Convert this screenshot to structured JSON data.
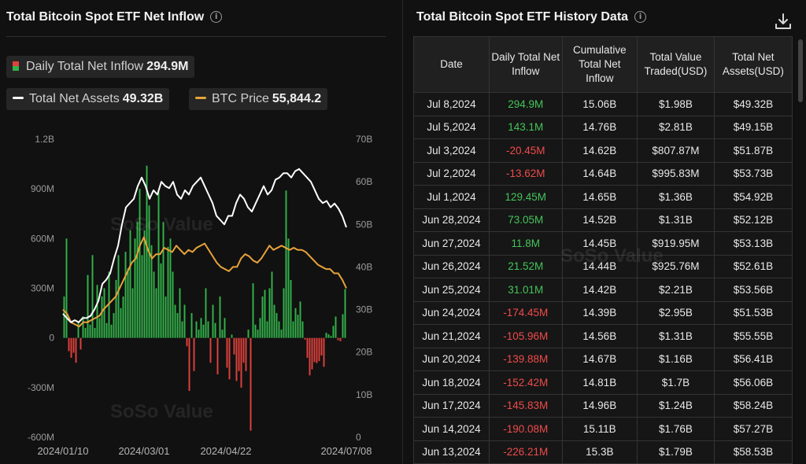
{
  "left": {
    "title": "Total Bitcoin Spot ETF Net Inflow",
    "legend": {
      "daily": {
        "label": "Daily Total Net Inflow",
        "value": "294.9M"
      },
      "assets": {
        "label": "Total Net Assets",
        "value": "49.32B"
      },
      "btc": {
        "label": "BTC Price",
        "value": "55,844.2"
      }
    },
    "watermark": "SoSo Value"
  },
  "right": {
    "title": "Total Bitcoin Spot ETF History Data",
    "columns": [
      "Date",
      "Daily Total Net Inflow",
      "Cumulative Total Net Inflow",
      "Total Value Traded(USD)",
      "Total Net Assets(USD)"
    ],
    "rows": [
      [
        "Jul 8,2024",
        "294.9M",
        "15.06B",
        "$1.98B",
        "$49.32B"
      ],
      [
        "Jul 5,2024",
        "143.1M",
        "14.76B",
        "$2.81B",
        "$49.15B"
      ],
      [
        "Jul 3,2024",
        "-20.45M",
        "14.62B",
        "$807.87M",
        "$51.87B"
      ],
      [
        "Jul 2,2024",
        "-13.62M",
        "14.64B",
        "$995.83M",
        "$53.73B"
      ],
      [
        "Jul 1,2024",
        "129.45M",
        "14.65B",
        "$1.36B",
        "$54.92B"
      ],
      [
        "Jun 28,2024",
        "73.05M",
        "14.52B",
        "$1.31B",
        "$52.12B"
      ],
      [
        "Jun 27,2024",
        "11.8M",
        "14.45B",
        "$919.95M",
        "$53.13B"
      ],
      [
        "Jun 26,2024",
        "21.52M",
        "14.44B",
        "$925.76M",
        "$52.61B"
      ],
      [
        "Jun 25,2024",
        "31.01M",
        "14.42B",
        "$2.21B",
        "$53.56B"
      ],
      [
        "Jun 24,2024",
        "-174.45M",
        "14.39B",
        "$2.95B",
        "$51.53B"
      ],
      [
        "Jun 21,2024",
        "-105.96M",
        "14.56B",
        "$1.31B",
        "$55.55B"
      ],
      [
        "Jun 20,2024",
        "-139.88M",
        "14.67B",
        "$1.16B",
        "$56.41B"
      ],
      [
        "Jun 18,2024",
        "-152.42M",
        "14.81B",
        "$1.7B",
        "$56.06B"
      ],
      [
        "Jun 17,2024",
        "-145.83M",
        "14.96B",
        "$1.24B",
        "$58.24B"
      ],
      [
        "Jun 14,2024",
        "-190.08M",
        "15.11B",
        "$1.76B",
        "$57.27B"
      ],
      [
        "Jun 13,2024",
        "-226.21M",
        "15.3B",
        "$1.79B",
        "$58.53B"
      ]
    ],
    "watermark": "SoSo Value"
  },
  "colors": {
    "positive": "#33b249",
    "negative": "#e0413d",
    "assets_line": "#ffffff",
    "btc_line": "#e8a33a",
    "background": "#111111"
  },
  "chart_data": {
    "type": "bar",
    "title": "Total Bitcoin Spot ETF Net Inflow",
    "x_tick_labels": [
      "2024/01/10",
      "2024/03/01",
      "2024/04/22",
      "2024/07/08"
    ],
    "y_left_ticks": [
      "1.2B",
      "900M",
      "600M",
      "300M",
      "0",
      "-300M",
      "-600M"
    ],
    "y_left_range": [
      -600,
      1200
    ],
    "y_right_ticks": [
      "70B",
      "60B",
      "50B",
      "40B",
      "30B",
      "20B",
      "10B",
      "0"
    ],
    "y_right_range": [
      0,
      70
    ],
    "grid": false,
    "series": [
      {
        "name": "Daily Total Net Inflow",
        "kind": "bar",
        "unit": "M USD",
        "values": [
          250,
          600,
          -80,
          -120,
          -90,
          -150,
          100,
          -70,
          130,
          60,
          380,
          80,
          500,
          60,
          320,
          120,
          250,
          300,
          90,
          400,
          80,
          150,
          350,
          500,
          180,
          250,
          520,
          420,
          650,
          300,
          600,
          700,
          900,
          500,
          650,
          1040,
          800,
          560,
          400,
          300,
          880,
          450,
          700,
          250,
          550,
          600,
          400,
          200,
          150,
          300,
          100,
          200,
          -50,
          -320,
          150,
          -200,
          100,
          50,
          120,
          80,
          300,
          100,
          -150,
          200,
          90,
          -220,
          250,
          50,
          120,
          -180,
          -250,
          20,
          -100,
          -260,
          -200,
          -300,
          -150,
          -200,
          50,
          -560,
          330,
          80,
          50,
          120,
          250,
          290,
          100,
          300,
          400,
          200,
          150,
          100,
          50,
          300,
          890,
          600,
          350,
          100,
          180,
          140,
          220,
          100,
          -10,
          -120,
          -226,
          -190,
          -146,
          -152,
          -140,
          -106,
          -174,
          31,
          22,
          12,
          73,
          129,
          -14,
          -20,
          143,
          295
        ]
      },
      {
        "name": "Total Net Assets",
        "kind": "line",
        "unit": "B USD",
        "values": [
          29,
          28,
          27,
          27.5,
          27,
          28,
          28,
          28.5,
          30,
          32,
          36,
          37,
          38.5,
          42,
          45,
          50,
          54,
          55,
          56,
          59,
          61,
          59,
          56,
          58,
          57,
          60,
          59,
          58.5,
          60,
          57,
          56,
          58,
          57,
          59,
          60,
          61,
          59,
          57,
          55,
          52,
          51,
          50,
          52,
          52,
          55,
          57,
          56,
          54,
          53,
          55,
          57,
          59,
          57,
          58,
          60.5,
          61,
          62,
          62,
          61,
          62.5,
          63,
          62,
          61,
          60,
          58,
          56,
          55,
          55.5,
          54,
          54.9,
          53.7,
          51.9,
          49.3
        ]
      },
      {
        "name": "BTC Price",
        "kind": "line",
        "unit": "price on right axis",
        "values": [
          30,
          29,
          27,
          26.5,
          26,
          27,
          27,
          27.5,
          28,
          28.5,
          30,
          31,
          32,
          33,
          35,
          37,
          39,
          41,
          42,
          45,
          47,
          44,
          42,
          43,
          43,
          44.5,
          44,
          43.5,
          45,
          44,
          43,
          44,
          43.5,
          44.5,
          45,
          45.5,
          44,
          42.5,
          41,
          40,
          39.5,
          39,
          40,
          40,
          42,
          43,
          42.5,
          41.5,
          41,
          42,
          43.5,
          45,
          44,
          44.5,
          45,
          44.5,
          44,
          44.5,
          44,
          44,
          43.5,
          42.5,
          41.5,
          40.5,
          40,
          39.5,
          39.5,
          38.5,
          38.5,
          37,
          35
        ]
      }
    ]
  }
}
